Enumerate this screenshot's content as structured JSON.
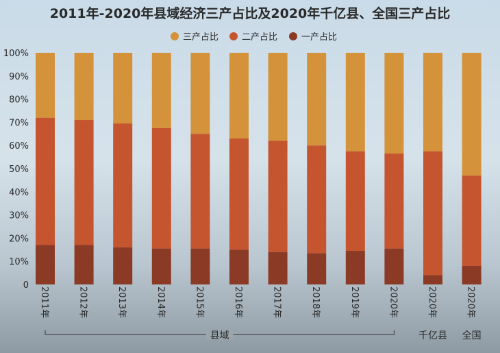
{
  "chart_data": {
    "type": "bar",
    "stacked": true,
    "title": "2011年-2020年县域经济三产占比及2020年千亿县、全国三产占比",
    "categories": [
      "2011年",
      "2012年",
      "2013年",
      "2014年",
      "2015年",
      "2016年",
      "2017年",
      "2018年",
      "2019年",
      "2020年",
      "2020年",
      "2020年"
    ],
    "category_groups": [
      {
        "label": "县域",
        "from": 0,
        "to": 9
      },
      {
        "label": "千亿县",
        "from": 10,
        "to": 10
      },
      {
        "label": "全国",
        "from": 11,
        "to": 11
      }
    ],
    "series": [
      {
        "name": "一产占比",
        "color": "#8b3a26",
        "values": [
          17,
          17,
          16,
          15.5,
          15.5,
          15,
          14,
          13.5,
          14.5,
          15.5,
          4,
          8
        ]
      },
      {
        "name": "二产占比",
        "color": "#c4552f",
        "values": [
          55,
          54,
          53.5,
          52,
          49.5,
          48,
          48,
          46.5,
          43,
          41,
          53.5,
          39
        ]
      },
      {
        "name": "三产占比",
        "color": "#d4923a",
        "values": [
          28,
          29,
          30.5,
          32.5,
          35,
          37,
          38,
          40,
          42.5,
          43.5,
          42.5,
          53
        ]
      }
    ],
    "y_ticks": [
      "0",
      "10%",
      "20%",
      "30%",
      "40%",
      "50%",
      "60%",
      "70%",
      "80%",
      "90%",
      "100%"
    ],
    "ylim": [
      0,
      100
    ],
    "legend_position": "top",
    "legend_order": [
      2,
      1,
      0
    ],
    "grid": false
  }
}
